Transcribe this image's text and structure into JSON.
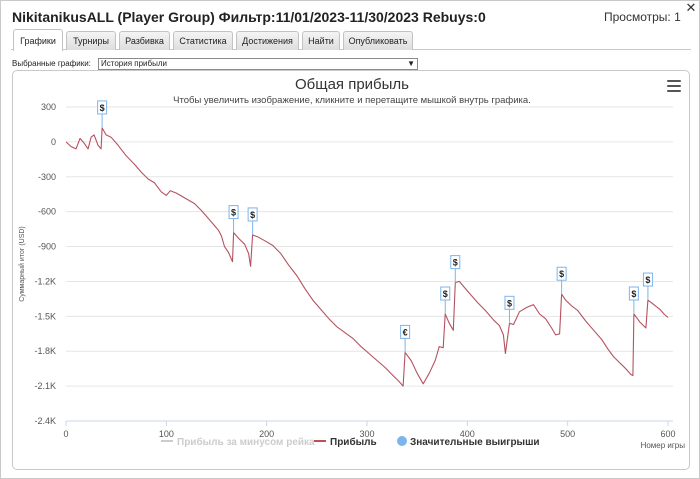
{
  "window": {
    "title": "NikitanikusALL (Player Group) Фильтр:11/01/2023-11/30/2023 Rebuys:0",
    "views_label": "Просмотры: 1",
    "close_icon": "close-icon"
  },
  "tabs": [
    {
      "label": "Графики",
      "active": true
    },
    {
      "label": "Турниры",
      "active": false
    },
    {
      "label": "Разбивка",
      "active": false
    },
    {
      "label": "Статистика",
      "active": false
    },
    {
      "label": "Достижения",
      "active": false
    },
    {
      "label": "Найти",
      "active": false
    },
    {
      "label": "Опубликовать",
      "active": false
    }
  ],
  "chart_selector": {
    "label": "Выбранные графики:",
    "value": "История прибыли",
    "icon": "chevron-down-icon"
  },
  "chart_menu_icon": "hamburger-menu-icon",
  "chart_data": {
    "type": "line",
    "title": "Общая прибыль",
    "subtitle": "Чтобы увеличить изображение, кликните и перетащите мышкой внутрь графика.",
    "xlabel": "Номер игры",
    "ylabel": "Суммарный итог (USD)",
    "xlim": [
      0,
      605
    ],
    "ylim": [
      -2400,
      300
    ],
    "x_ticks": [
      0,
      100,
      200,
      300,
      400,
      500,
      600
    ],
    "y_ticks": [
      {
        "value": 300,
        "label": "300"
      },
      {
        "value": 0,
        "label": "0"
      },
      {
        "value": -300,
        "label": "-300"
      },
      {
        "value": -600,
        "label": "-600"
      },
      {
        "value": -900,
        "label": "-900"
      },
      {
        "value": -1200,
        "label": "-1.2K"
      },
      {
        "value": -1500,
        "label": "-1.5K"
      },
      {
        "value": -1800,
        "label": "-1.8K"
      },
      {
        "value": -2100,
        "label": "-2.1K"
      },
      {
        "value": -2400,
        "label": "-2.4K"
      }
    ],
    "grid": true,
    "legend_placement": "bottom",
    "legend": [
      {
        "name": "Прибыль за минусом рейка",
        "color": "#cccccc",
        "marker": "line",
        "enabled": false
      },
      {
        "name": "Прибыль",
        "color": "#b5525f",
        "marker": "line",
        "enabled": true
      },
      {
        "name": "Значительные выигрыши",
        "color": "#7cb5ec",
        "marker": "circle",
        "enabled": true
      }
    ],
    "series": [
      {
        "name": "Прибыль",
        "color": "#b5525f",
        "points": [
          [
            0,
            0
          ],
          [
            5,
            -40
          ],
          [
            10,
            -60
          ],
          [
            14,
            30
          ],
          [
            18,
            -10
          ],
          [
            22,
            -60
          ],
          [
            25,
            40
          ],
          [
            28,
            60
          ],
          [
            32,
            -30
          ],
          [
            35,
            -60
          ],
          [
            36,
            120
          ],
          [
            40,
            60
          ],
          [
            45,
            40
          ],
          [
            52,
            -30
          ],
          [
            60,
            -120
          ],
          [
            68,
            -190
          ],
          [
            75,
            -260
          ],
          [
            82,
            -320
          ],
          [
            88,
            -350
          ],
          [
            95,
            -430
          ],
          [
            100,
            -460
          ],
          [
            104,
            -420
          ],
          [
            110,
            -440
          ],
          [
            120,
            -490
          ],
          [
            128,
            -530
          ],
          [
            135,
            -590
          ],
          [
            142,
            -660
          ],
          [
            148,
            -720
          ],
          [
            152,
            -760
          ],
          [
            155,
            -810
          ],
          [
            158,
            -900
          ],
          [
            162,
            -950
          ],
          [
            166,
            -1030
          ],
          [
            167,
            -780
          ],
          [
            172,
            -830
          ],
          [
            178,
            -880
          ],
          [
            182,
            -960
          ],
          [
            184,
            -1070
          ],
          [
            186,
            -800
          ],
          [
            192,
            -820
          ],
          [
            198,
            -850
          ],
          [
            206,
            -890
          ],
          [
            214,
            -960
          ],
          [
            222,
            -1060
          ],
          [
            230,
            -1150
          ],
          [
            238,
            -1260
          ],
          [
            246,
            -1360
          ],
          [
            254,
            -1440
          ],
          [
            262,
            -1520
          ],
          [
            270,
            -1590
          ],
          [
            278,
            -1640
          ],
          [
            286,
            -1690
          ],
          [
            294,
            -1760
          ],
          [
            302,
            -1820
          ],
          [
            310,
            -1880
          ],
          [
            318,
            -1940
          ],
          [
            326,
            -2010
          ],
          [
            332,
            -2060
          ],
          [
            336,
            -2100
          ],
          [
            338,
            -1810
          ],
          [
            344,
            -1880
          ],
          [
            350,
            -1990
          ],
          [
            354,
            -2050
          ],
          [
            356,
            -2080
          ],
          [
            362,
            -1990
          ],
          [
            368,
            -1880
          ],
          [
            372,
            -1760
          ],
          [
            376,
            -1770
          ],
          [
            378,
            -1480
          ],
          [
            382,
            -1560
          ],
          [
            386,
            -1620
          ],
          [
            388,
            -1210
          ],
          [
            392,
            -1200
          ],
          [
            396,
            -1240
          ],
          [
            402,
            -1300
          ],
          [
            410,
            -1380
          ],
          [
            418,
            -1450
          ],
          [
            426,
            -1530
          ],
          [
            432,
            -1580
          ],
          [
            436,
            -1660
          ],
          [
            438,
            -1820
          ],
          [
            442,
            -1560
          ],
          [
            446,
            -1570
          ],
          [
            452,
            -1460
          ],
          [
            460,
            -1420
          ],
          [
            466,
            -1400
          ],
          [
            472,
            -1480
          ],
          [
            478,
            -1520
          ],
          [
            484,
            -1600
          ],
          [
            488,
            -1660
          ],
          [
            492,
            -1650
          ],
          [
            494,
            -1310
          ],
          [
            498,
            -1360
          ],
          [
            504,
            -1410
          ],
          [
            510,
            -1450
          ],
          [
            518,
            -1540
          ],
          [
            526,
            -1620
          ],
          [
            534,
            -1700
          ],
          [
            540,
            -1780
          ],
          [
            546,
            -1850
          ],
          [
            552,
            -1900
          ],
          [
            558,
            -1950
          ],
          [
            563,
            -2000
          ],
          [
            565,
            -2010
          ],
          [
            566,
            -1480
          ],
          [
            572,
            -1550
          ],
          [
            578,
            -1600
          ],
          [
            580,
            -1360
          ],
          [
            586,
            -1400
          ],
          [
            592,
            -1440
          ],
          [
            596,
            -1480
          ],
          [
            600,
            -1510
          ]
        ]
      }
    ],
    "significant_wins": [
      {
        "x": 36,
        "y": 120,
        "label": "$"
      },
      {
        "x": 167,
        "y": -780,
        "label": "$"
      },
      {
        "x": 186,
        "y": -800,
        "label": "$"
      },
      {
        "x": 338,
        "y": -1810,
        "label": "€"
      },
      {
        "x": 378,
        "y": -1480,
        "label": "$"
      },
      {
        "x": 388,
        "y": -1210,
        "label": "$"
      },
      {
        "x": 442,
        "y": -1560,
        "label": "$"
      },
      {
        "x": 494,
        "y": -1310,
        "label": "$"
      },
      {
        "x": 566,
        "y": -1480,
        "label": "$"
      },
      {
        "x": 580,
        "y": -1360,
        "label": "$"
      }
    ]
  }
}
